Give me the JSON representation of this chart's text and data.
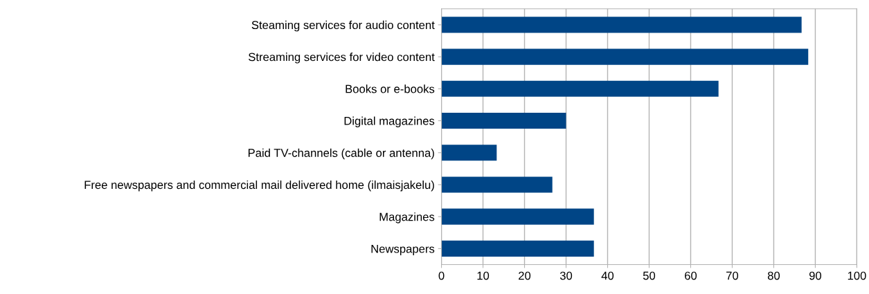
{
  "chart_data": {
    "type": "bar",
    "orientation": "horizontal",
    "categories": [
      "Steaming services for audio content",
      "Streaming services for video content",
      "Books or e-books",
      "Digital magazines",
      "Paid TV-channels (cable or antenna)",
      "Free newspapers and commercial mail delivered home (ilmaisjakelu)",
      "Magazines",
      "Newspapers"
    ],
    "values": [
      86.7,
      88.3,
      66.7,
      30,
      13.3,
      26.7,
      36.7,
      36.7
    ],
    "color": "#004586",
    "xlim": [
      0,
      100
    ],
    "xticks": [
      0,
      10,
      20,
      30,
      40,
      50,
      60,
      70,
      80,
      90,
      100
    ],
    "grid": "x",
    "legend": false
  }
}
